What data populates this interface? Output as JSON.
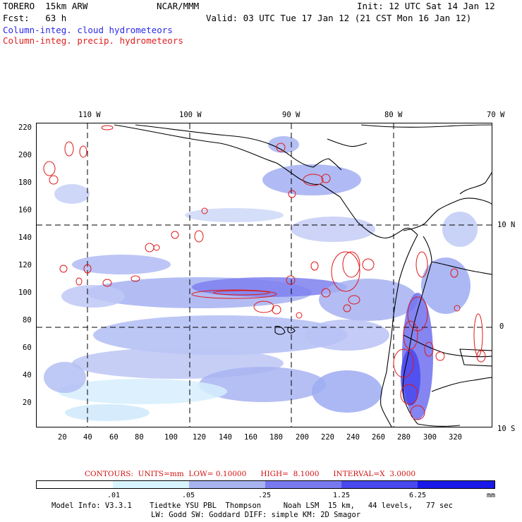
{
  "header": {
    "run_name": "TORERO  15km ARW",
    "org": "NCAR/MMM",
    "init": "Init: 12 UTC Sat 14 Jan 12",
    "fcst": "Fcst:   63 h",
    "valid": "Valid: 03 UTC Tue 17 Jan 12 (21 CST Mon 16 Jan 12)",
    "legend_cloud": "Column-integ. cloud hydrometeors",
    "legend_precip": "Column-integ. precip. hydrometeors"
  },
  "colors": {
    "cloud_light": "#cceeff",
    "cloud_mid": "#9aa8f0",
    "cloud_dark": "#6b6bf0",
    "cloud_darker": "#3a3ae8",
    "cloud_darkest": "#1010e8",
    "precip_contour": "#e01818",
    "coast": "#000000"
  },
  "map": {
    "lon_labels": [
      "110 W",
      "100 W",
      "90 W",
      "80 W",
      "70 W"
    ],
    "lat_labels": [
      "10 N",
      "0",
      "10 S"
    ],
    "x_ticks": [
      "20",
      "40",
      "60",
      "80",
      "100",
      "120",
      "140",
      "160",
      "180",
      "200",
      "220",
      "240",
      "260",
      "280",
      "300",
      "320"
    ],
    "y_ticks": [
      "220",
      "200",
      "180",
      "160",
      "140",
      "120",
      "100",
      "80",
      "60",
      "40",
      "20"
    ]
  },
  "contours": {
    "text": "CONTOURS:  UNITS=mm  LOW= 0.10000      HIGH=  8.1000      INTERVAL=X  3.0000"
  },
  "colorbar": {
    "labels": [
      ".01",
      ".05",
      ".25",
      "1.25",
      "6.25",
      "mm"
    ],
    "colors": [
      "#ffffff",
      "#d8f4ff",
      "#a8b4f0",
      "#7878f0",
      "#4848ee",
      "#1a1ae8"
    ]
  },
  "model_info": {
    "line1": "Model Info: V3.3.1    Tiedtke YSU PBL  Thompson     Noah LSM  15 km,   44 levels,   77 sec",
    "line2": "LW: Godd SW: Goddard DIFF: simple KM: 2D Smagor"
  }
}
